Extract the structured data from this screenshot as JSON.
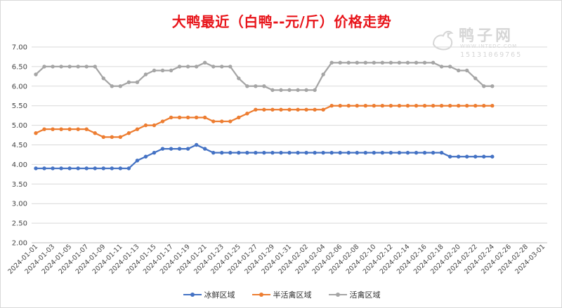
{
  "chart_data": {
    "type": "line",
    "title": "大鸭最近（白鸭--元/斤）价格走势",
    "ylim": [
      2.0,
      7.0
    ],
    "y_ticks": [
      "2.00",
      "2.50",
      "3.00",
      "3.50",
      "4.00",
      "4.50",
      "5.00",
      "5.50",
      "6.00",
      "6.50",
      "7.00"
    ],
    "x_tick_labels": [
      "2024-01-01",
      "2024-01-03",
      "2024-01-05",
      "2024-01-07",
      "2024-01-09",
      "2024-01-11",
      "2024-01-13",
      "2024-01-15",
      "2024-01-17",
      "2024-01-19",
      "2024-01-21",
      "2024-01-23",
      "2024-01-25",
      "2024-01-27",
      "2024-01-29",
      "2024-01-31",
      "2024-02-02",
      "2024-02-04",
      "2024-02-06",
      "2024-02-08",
      "2024-02-10",
      "2024-02-12",
      "2024-02-14",
      "2024-02-16",
      "2024-02-18",
      "2024-02-20",
      "2024-02-22",
      "2024-02-24",
      "2024-02-26",
      "2024-02-28",
      "2024-03-01"
    ],
    "x_range": [
      "2024-01-01",
      "2024-03-02"
    ],
    "x": [
      "2024-01-01",
      "2024-01-02",
      "2024-01-03",
      "2024-01-04",
      "2024-01-05",
      "2024-01-06",
      "2024-01-07",
      "2024-01-08",
      "2024-01-09",
      "2024-01-10",
      "2024-01-11",
      "2024-01-12",
      "2024-01-13",
      "2024-01-14",
      "2024-01-15",
      "2024-01-16",
      "2024-01-17",
      "2024-01-18",
      "2024-01-19",
      "2024-01-20",
      "2024-01-21",
      "2024-01-22",
      "2024-01-23",
      "2024-01-24",
      "2024-01-25",
      "2024-01-26",
      "2024-01-27",
      "2024-01-28",
      "2024-01-29",
      "2024-01-30",
      "2024-01-31",
      "2024-02-01",
      "2024-02-02",
      "2024-02-03",
      "2024-02-04",
      "2024-02-05",
      "2024-02-06",
      "2024-02-07",
      "2024-02-08",
      "2024-02-09",
      "2024-02-10",
      "2024-02-11",
      "2024-02-12",
      "2024-02-13",
      "2024-02-14",
      "2024-02-15",
      "2024-02-16",
      "2024-02-17",
      "2024-02-18",
      "2024-02-19",
      "2024-02-20",
      "2024-02-21",
      "2024-02-22",
      "2024-02-23",
      "2024-02-24"
    ],
    "series": [
      {
        "name": "冰鲜区域",
        "color": "#4472c4",
        "values": [
          3.9,
          3.9,
          3.9,
          3.9,
          3.9,
          3.9,
          3.9,
          3.9,
          3.9,
          3.9,
          3.9,
          3.9,
          4.1,
          4.2,
          4.3,
          4.4,
          4.4,
          4.4,
          4.4,
          4.5,
          4.4,
          4.3,
          4.3,
          4.3,
          4.3,
          4.3,
          4.3,
          4.3,
          4.3,
          4.3,
          4.3,
          4.3,
          4.3,
          4.3,
          4.3,
          4.3,
          4.3,
          4.3,
          4.3,
          4.3,
          4.3,
          4.3,
          4.3,
          4.3,
          4.3,
          4.3,
          4.3,
          4.3,
          4.3,
          4.2,
          4.2,
          4.2,
          4.2,
          4.2,
          4.2
        ]
      },
      {
        "name": "半活禽区域",
        "color": "#ed7d31",
        "values": [
          4.8,
          4.9,
          4.9,
          4.9,
          4.9,
          4.9,
          4.9,
          4.8,
          4.7,
          4.7,
          4.7,
          4.8,
          4.9,
          5.0,
          5.0,
          5.1,
          5.2,
          5.2,
          5.2,
          5.2,
          5.2,
          5.1,
          5.1,
          5.1,
          5.2,
          5.3,
          5.4,
          5.4,
          5.4,
          5.4,
          5.4,
          5.4,
          5.4,
          5.4,
          5.4,
          5.5,
          5.5,
          5.5,
          5.5,
          5.5,
          5.5,
          5.5,
          5.5,
          5.5,
          5.5,
          5.5,
          5.5,
          5.5,
          5.5,
          5.5,
          5.5,
          5.5,
          5.5,
          5.5,
          5.5
        ]
      },
      {
        "name": "活禽区域",
        "color": "#a5a5a5",
        "values": [
          6.3,
          6.5,
          6.5,
          6.5,
          6.5,
          6.5,
          6.5,
          6.5,
          6.2,
          6.0,
          6.0,
          6.1,
          6.1,
          6.3,
          6.4,
          6.4,
          6.4,
          6.5,
          6.5,
          6.5,
          6.6,
          6.5,
          6.5,
          6.5,
          6.2,
          6.0,
          6.0,
          6.0,
          5.9,
          5.9,
          5.9,
          5.9,
          5.9,
          5.9,
          6.3,
          6.6,
          6.6,
          6.6,
          6.6,
          6.6,
          6.6,
          6.6,
          6.6,
          6.6,
          6.6,
          6.6,
          6.6,
          6.6,
          6.5,
          6.5,
          6.4,
          6.4,
          6.2,
          6.0,
          6.0
        ]
      }
    ],
    "legend_position": "bottom",
    "grid": true
  },
  "watermark": {
    "name": "鸭子网",
    "url": "WWW.INTEDC.COM",
    "phone": "15131069765"
  }
}
